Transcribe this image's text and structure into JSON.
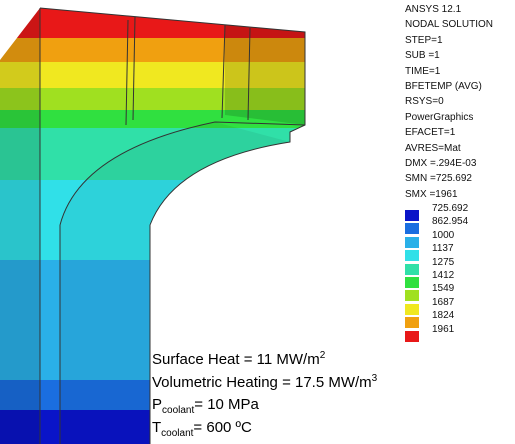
{
  "header": {
    "lines": [
      "ANSYS 12.1",
      "NODAL SOLUTION",
      "STEP=1",
      "SUB =1",
      "TIME=1",
      "BFETEMP   (AVG)",
      "RSYS=0",
      "PowerGraphics",
      "EFACET=1",
      "AVRES=Mat",
      "DMX =.294E-03",
      "SMN =725.692",
      "SMX =1961"
    ]
  },
  "legend": {
    "entries": [
      {
        "label": "725.692",
        "color": "#0a14c8"
      },
      {
        "label": "862.954",
        "color": "#1a6ee0"
      },
      {
        "label": "1000",
        "color": "#2ab0e8"
      },
      {
        "label": "1137",
        "color": "#30e0e8"
      },
      {
        "label": "1275",
        "color": "#30e0a8"
      },
      {
        "label": "1412",
        "color": "#30e040"
      },
      {
        "label": "1549",
        "color": "#a0e020"
      },
      {
        "label": "1687",
        "color": "#f0e820"
      },
      {
        "label": "1824",
        "color": "#f0a010"
      },
      {
        "label": "1961",
        "color": "#e81818"
      }
    ]
  },
  "annotations": [
    {
      "text": "Surface Heat = 11 MW/m",
      "sup": "2"
    },
    {
      "text": "Volumetric Heating = 17.5 MW/m",
      "sup": "3"
    },
    {
      "text": "P",
      "sub": "coolant",
      "tail": "= 10 MPa"
    },
    {
      "text": "T",
      "sub": "coolant",
      "tail": "= 600 ºC"
    }
  ]
}
